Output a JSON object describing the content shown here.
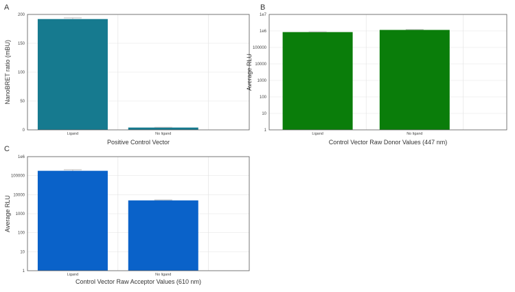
{
  "chart_data": [
    {
      "panel": "A",
      "type": "bar",
      "categories": [
        "Ligand",
        "No ligand"
      ],
      "values": [
        192,
        4
      ],
      "errors": [
        2,
        0.5
      ],
      "ylabel": "NanoBRET ratio (mBU)",
      "xlabel": "Positive Control Vector",
      "ylim": [
        0,
        200
      ],
      "yscale": "linear",
      "yticks": [
        0,
        50,
        100,
        150,
        200
      ],
      "ytick_labels": [
        "0",
        "50",
        "100",
        "150",
        "200"
      ],
      "color": "#167a8f",
      "grid": true
    },
    {
      "panel": "B",
      "type": "bar",
      "categories": [
        "Ligand",
        "No ligand"
      ],
      "values": [
        850000,
        1150000
      ],
      "errors": [
        40000,
        60000
      ],
      "ylabel": "Average RLU",
      "xlabel": "Control Vector Raw Donor Values (447 nm)",
      "ylim": [
        1,
        10000000
      ],
      "yscale": "log",
      "yticks": [
        1,
        10,
        100,
        1000,
        10000,
        100000,
        1000000,
        10000000
      ],
      "ytick_labels": [
        "1",
        "10",
        "100",
        "1000",
        "10000",
        "100000",
        "1e6",
        "1e7"
      ],
      "color": "#0a7d0a",
      "grid": true
    },
    {
      "panel": "C",
      "type": "bar",
      "categories": [
        "Ligand",
        "No ligand"
      ],
      "values": [
        180000,
        5000
      ],
      "errors": [
        25000,
        300
      ],
      "ylabel": "Average RLU",
      "xlabel": "Control Vector Raw Acceptor Values (610 nm)",
      "ylim": [
        1,
        1000000
      ],
      "yscale": "log",
      "yticks": [
        1,
        10,
        100,
        1000,
        10000,
        100000,
        1000000
      ],
      "ytick_labels": [
        "1",
        "10",
        "100",
        "1000",
        "10000",
        "100000",
        "1e6"
      ],
      "color": "#0a62c9",
      "grid": true
    }
  ]
}
